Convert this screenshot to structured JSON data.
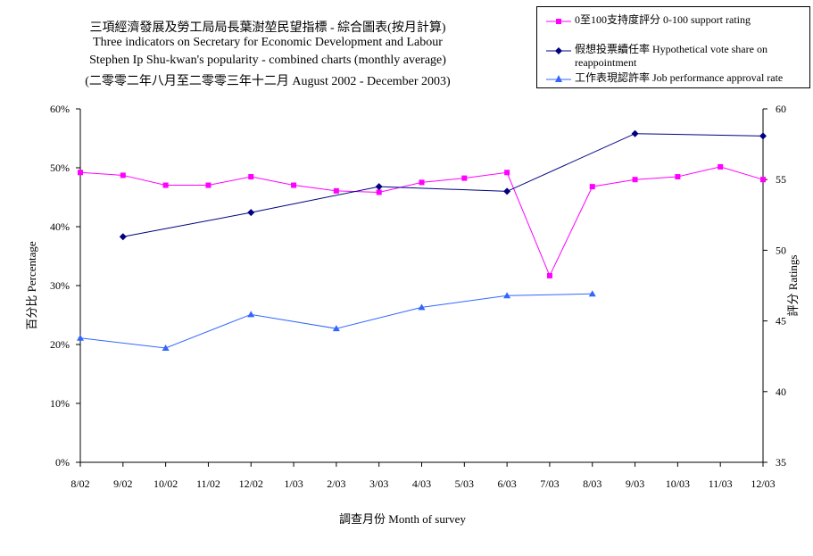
{
  "title": {
    "line1": "三項經濟發展及勞工局局長葉澍堃民望指標 - 綜合圖表(按月計算)",
    "line2": "Three indicators on Secretary for Economic Development and Labour",
    "line3": "Stephen Ip Shu-kwan's popularity - combined charts (monthly average)",
    "line4": "(二零零二年八月至二零零三年十二月 August 2002 - December 2003)"
  },
  "chart_data": {
    "type": "line",
    "xlabel": "調查月份 Month of survey",
    "ylabel_left": "百分比 Percentage",
    "ylabel_right": "評分 Ratings",
    "categories": [
      "8/02",
      "9/02",
      "10/02",
      "11/02",
      "12/02",
      "1/03",
      "2/03",
      "3/03",
      "4/03",
      "5/03",
      "6/03",
      "7/03",
      "8/03",
      "9/03",
      "10/03",
      "11/03",
      "12/03"
    ],
    "ylim_left": [
      0,
      60
    ],
    "ylim_right": [
      35,
      60
    ],
    "left_ticks": [
      "0%",
      "10%",
      "20%",
      "30%",
      "40%",
      "50%",
      "60%"
    ],
    "right_ticks": [
      "35",
      "40",
      "45",
      "50",
      "55",
      "60"
    ],
    "legend_position": "top-right",
    "series": [
      {
        "name": "0至100支持度評分 0-100 support rating",
        "axis": "right",
        "color": "#ff00ff",
        "marker": "square",
        "values": [
          55.5,
          55.3,
          54.6,
          54.6,
          55.2,
          54.6,
          54.2,
          54.1,
          54.8,
          55.1,
          55.5,
          48.2,
          54.5,
          55.0,
          55.2,
          55.9,
          55.0
        ]
      },
      {
        "name": "假想投票續任率 Hypothetical vote share on reappointment",
        "axis": "left",
        "color": "#000080",
        "marker": "diamond",
        "values": [
          null,
          38.3,
          null,
          null,
          42.4,
          null,
          null,
          46.8,
          null,
          null,
          46.0,
          null,
          null,
          55.8,
          null,
          null,
          55.4
        ]
      },
      {
        "name": "工作表現認許率 Job performance approval rate",
        "axis": "left",
        "color": "#3366ff",
        "marker": "triangle",
        "values": [
          21.1,
          null,
          19.4,
          null,
          25.1,
          null,
          22.7,
          null,
          26.3,
          null,
          28.3,
          null,
          28.6,
          null,
          null,
          null,
          null
        ]
      }
    ]
  }
}
